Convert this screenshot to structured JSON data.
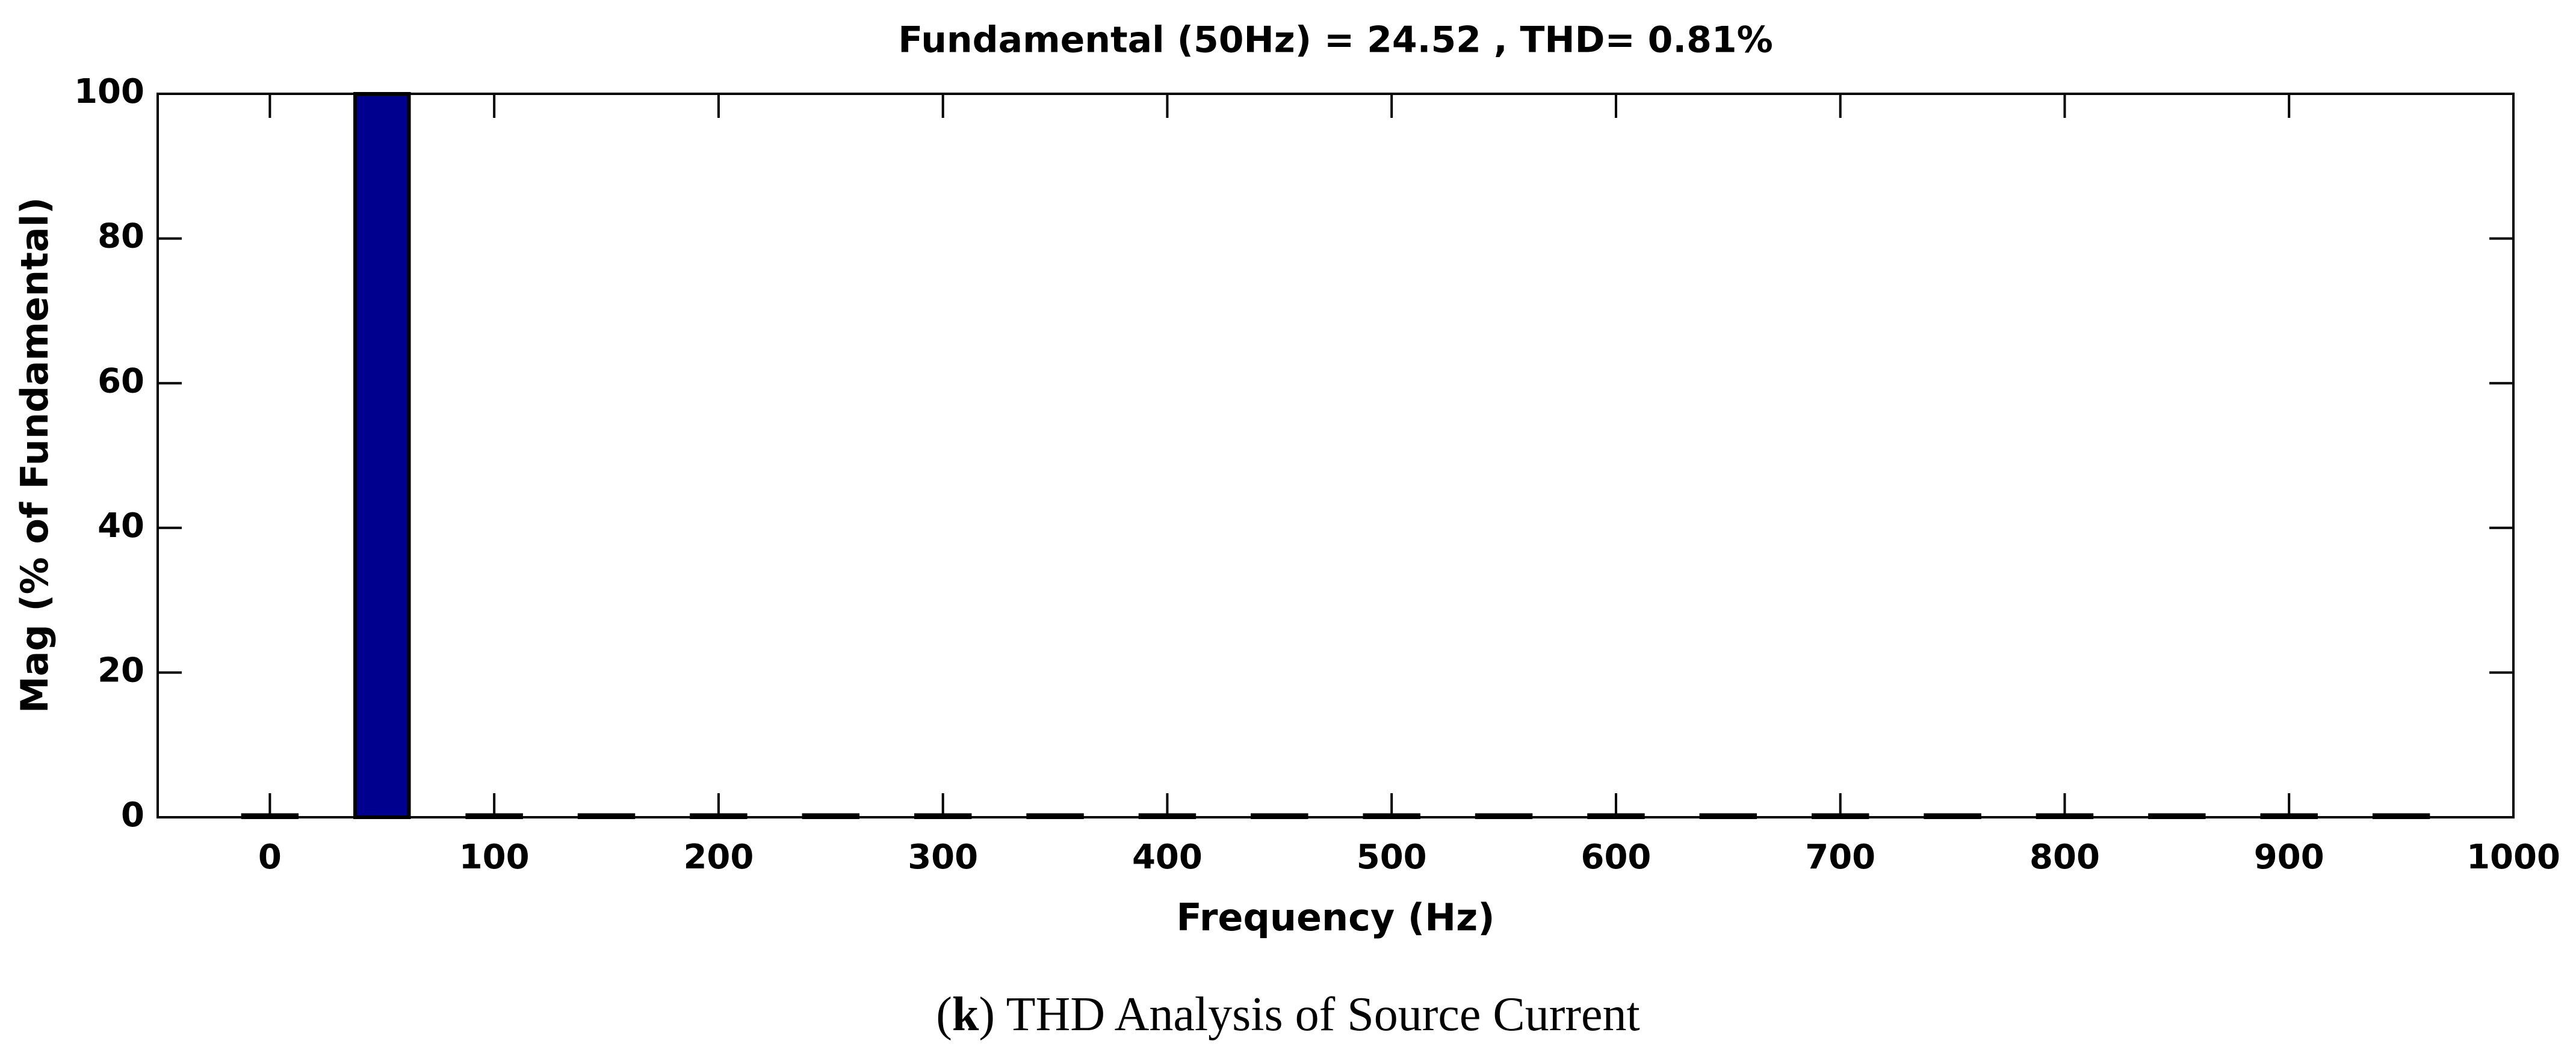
{
  "chart_data": {
    "type": "bar",
    "title": "Fundamental (50Hz) = 24.52 , THD= 0.81%",
    "x_label": "Frequency (Hz)",
    "y_label": "Mag (% of Fundamental)",
    "caption": [
      "(",
      "k",
      ") THD Analysis of Source Current"
    ],
    "x": [
      0,
      50,
      100,
      150,
      200,
      250,
      300,
      350,
      400,
      450,
      500,
      550,
      600,
      650,
      700,
      750,
      800,
      850,
      900,
      950
    ],
    "values": [
      0.3,
      100,
      0.3,
      0.3,
      0.3,
      0.3,
      0.3,
      0.3,
      0.3,
      0.3,
      0.3,
      0.3,
      0.3,
      0.3,
      0.3,
      0.3,
      0.3,
      0.3,
      0.3,
      0.3
    ],
    "color": "#00008f",
    "xlim": [
      -50,
      1000
    ],
    "xticks": [
      0,
      100,
      200,
      300,
      400,
      500,
      600,
      700,
      800,
      900,
      1000
    ],
    "ylim": [
      0,
      100
    ],
    "yticks": [
      0,
      20,
      40,
      60,
      80,
      100
    ],
    "grid": false
  }
}
